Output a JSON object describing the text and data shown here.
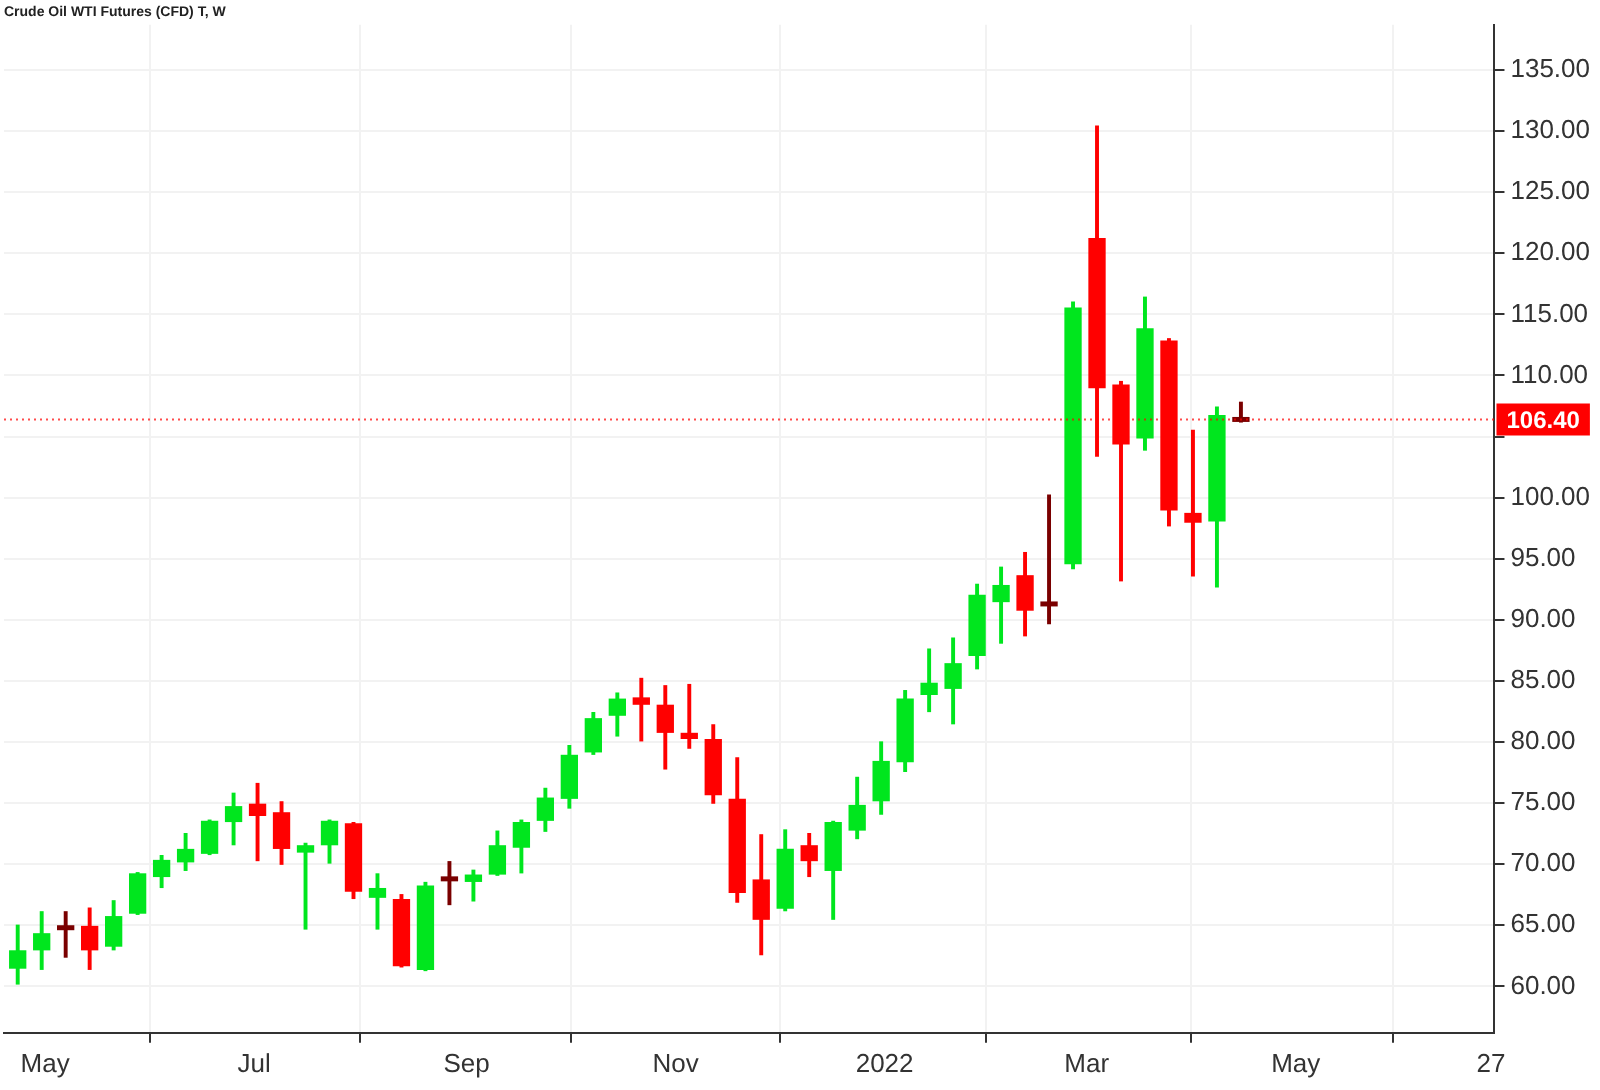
{
  "chart_data": {
    "type": "candlestick",
    "title": "Crude Oil WTI Futures (CFD) T, W",
    "x": [
      "2021-04-23",
      "2021-04-30",
      "2021-05-07",
      "2021-05-14",
      "2021-05-21",
      "2021-05-28",
      "2021-06-04",
      "2021-06-11",
      "2021-06-18",
      "2021-06-25",
      "2021-07-02",
      "2021-07-09",
      "2021-07-16",
      "2021-07-23",
      "2021-07-30",
      "2021-08-06",
      "2021-08-13",
      "2021-08-20",
      "2021-08-27",
      "2021-09-03",
      "2021-09-10",
      "2021-09-17",
      "2021-09-24",
      "2021-10-01",
      "2021-10-08",
      "2021-10-15",
      "2021-10-22",
      "2021-10-29",
      "2021-11-05",
      "2021-11-12",
      "2021-11-19",
      "2021-11-26",
      "2021-12-03",
      "2021-12-10",
      "2021-12-17",
      "2021-12-24",
      "2021-12-31",
      "2022-01-07",
      "2022-01-14",
      "2022-01-21",
      "2022-01-28",
      "2022-02-04",
      "2022-02-11",
      "2022-02-18",
      "2022-02-25",
      "2022-03-04",
      "2022-03-11",
      "2022-03-18",
      "2022-03-25",
      "2022-04-01",
      "2022-04-08",
      "2022-04-15"
    ],
    "ohlc": [
      [
        61.5,
        65.0,
        60.2,
        62.9
      ],
      [
        63.0,
        66.1,
        61.4,
        64.3
      ],
      [
        64.8,
        66.1,
        62.4,
        64.8
      ],
      [
        64.9,
        66.4,
        61.4,
        63.0
      ],
      [
        63.3,
        67.0,
        63.0,
        65.7
      ],
      [
        66.0,
        69.3,
        65.9,
        69.2
      ],
      [
        69.0,
        70.7,
        68.1,
        70.3
      ],
      [
        70.2,
        72.5,
        69.5,
        71.2
      ],
      [
        70.9,
        73.6,
        70.8,
        73.5
      ],
      [
        73.5,
        75.8,
        71.6,
        74.7
      ],
      [
        74.9,
        76.6,
        70.3,
        74.0
      ],
      [
        74.2,
        75.1,
        70.0,
        71.3
      ],
      [
        71.0,
        71.7,
        64.7,
        71.5
      ],
      [
        71.6,
        73.6,
        70.1,
        73.5
      ],
      [
        73.3,
        73.4,
        67.2,
        67.8
      ],
      [
        67.3,
        69.2,
        64.7,
        68.0
      ],
      [
        67.1,
        67.5,
        61.6,
        61.7
      ],
      [
        61.4,
        68.5,
        61.3,
        68.2
      ],
      [
        68.8,
        70.2,
        66.7,
        68.8
      ],
      [
        68.6,
        69.5,
        67.0,
        69.1
      ],
      [
        69.2,
        72.7,
        69.1,
        71.5
      ],
      [
        71.4,
        73.6,
        69.3,
        73.4
      ],
      [
        73.6,
        76.2,
        72.7,
        75.4
      ],
      [
        75.4,
        79.7,
        74.6,
        78.9
      ],
      [
        79.2,
        82.4,
        79.0,
        81.9
      ],
      [
        82.2,
        84.0,
        80.5,
        83.5
      ],
      [
        83.6,
        85.2,
        80.1,
        83.1
      ],
      [
        83.0,
        84.6,
        77.8,
        80.8
      ],
      [
        80.7,
        84.7,
        79.5,
        80.3
      ],
      [
        80.2,
        81.4,
        75.0,
        75.7
      ],
      [
        75.3,
        78.7,
        66.9,
        67.7
      ],
      [
        68.7,
        72.4,
        62.6,
        65.5
      ],
      [
        66.4,
        72.8,
        66.2,
        71.2
      ],
      [
        71.5,
        72.5,
        69.0,
        70.3
      ],
      [
        69.5,
        73.5,
        65.5,
        73.4
      ],
      [
        72.8,
        77.1,
        72.1,
        74.8
      ],
      [
        75.2,
        80.0,
        74.1,
        78.4
      ],
      [
        78.4,
        84.2,
        77.6,
        83.5
      ],
      [
        83.9,
        87.6,
        82.5,
        84.8
      ],
      [
        84.4,
        88.5,
        81.5,
        86.4
      ],
      [
        87.1,
        92.9,
        86.0,
        92.0
      ],
      [
        91.5,
        94.3,
        88.1,
        92.8
      ],
      [
        93.6,
        95.5,
        88.7,
        90.8
      ],
      [
        91.3,
        100.2,
        89.7,
        91.3
      ],
      [
        94.6,
        116.0,
        94.2,
        115.5
      ],
      [
        121.2,
        130.4,
        103.4,
        109.0
      ],
      [
        109.2,
        109.5,
        93.2,
        104.4
      ],
      [
        104.9,
        116.4,
        103.9,
        113.8
      ],
      [
        112.8,
        113.0,
        97.7,
        99.0
      ],
      [
        98.7,
        105.5,
        93.6,
        98.0
      ],
      [
        98.1,
        107.4,
        92.7,
        106.7
      ],
      [
        106.4,
        107.8,
        106.2,
        106.4
      ]
    ],
    "colors": [
      "#00e61e",
      "#00e61e",
      "#7a0000",
      "#ff0000",
      "#00e61e",
      "#00e61e",
      "#00e61e",
      "#00e61e",
      "#00e61e",
      "#00e61e",
      "#ff0000",
      "#ff0000",
      "#00e61e",
      "#00e61e",
      "#ff0000",
      "#00e61e",
      "#ff0000",
      "#00e61e",
      "#7a0000",
      "#00e61e",
      "#00e61e",
      "#00e61e",
      "#00e61e",
      "#00e61e",
      "#00e61e",
      "#00e61e",
      "#ff0000",
      "#ff0000",
      "#ff0000",
      "#ff0000",
      "#ff0000",
      "#ff0000",
      "#00e61e",
      "#ff0000",
      "#00e61e",
      "#00e61e",
      "#00e61e",
      "#00e61e",
      "#00e61e",
      "#00e61e",
      "#00e61e",
      "#00e61e",
      "#ff0000",
      "#7a0000",
      "#00e61e",
      "#ff0000",
      "#ff0000",
      "#00e61e",
      "#ff0000",
      "#ff0000",
      "#00e61e",
      "#7a0000"
    ],
    "xlim": [
      "2021-04-19",
      "2022-06-28"
    ],
    "xticks": [
      {
        "value": "2021-05-01",
        "label": "May"
      },
      {
        "value": "2021-07-01",
        "label": "Jul"
      },
      {
        "value": "2021-09-01",
        "label": "Sep"
      },
      {
        "value": "2021-11-01",
        "label": "Nov"
      },
      {
        "value": "2022-01-01",
        "label": "2022"
      },
      {
        "value": "2022-03-01",
        "label": "Mar"
      },
      {
        "value": "2022-05-01",
        "label": "May"
      },
      {
        "value": "2022-06-27",
        "label": "27"
      }
    ],
    "ylim": [
      56.2,
      138.7
    ],
    "yticks": [
      {
        "value": 60,
        "label": "60.00"
      },
      {
        "value": 65,
        "label": "65.00"
      },
      {
        "value": 70,
        "label": "70.00"
      },
      {
        "value": 75,
        "label": "75.00"
      },
      {
        "value": 80,
        "label": "80.00"
      },
      {
        "value": 85,
        "label": "85.00"
      },
      {
        "value": 90,
        "label": "90.00"
      },
      {
        "value": 95,
        "label": "95.00"
      },
      {
        "value": 100,
        "label": "100.00"
      },
      {
        "value": 105,
        "label": null
      },
      {
        "value": 110,
        "label": "110.00"
      },
      {
        "value": 115,
        "label": "115.00"
      },
      {
        "value": 120,
        "label": "120.00"
      },
      {
        "value": 125,
        "label": "125.00"
      },
      {
        "value": 130,
        "label": "130.00"
      },
      {
        "value": 135,
        "label": "135.00"
      }
    ],
    "ref_lines": [
      {
        "axis": "y",
        "value": 106.4,
        "label": "106.40",
        "color": "#ff0000",
        "line_style": "dotted"
      }
    ],
    "grid": true
  }
}
